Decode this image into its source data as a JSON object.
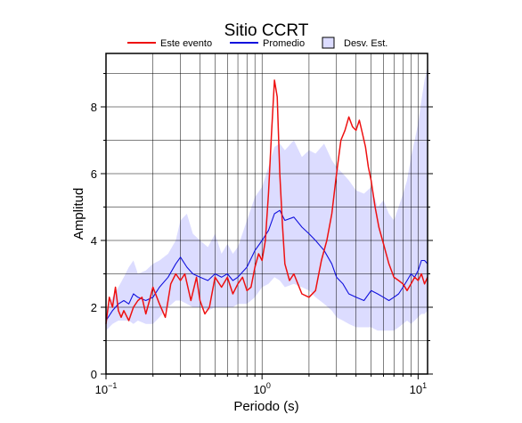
{
  "chart_data": {
    "type": "line",
    "title": "Sitio CCRT",
    "xlabel": "Periodo (s)",
    "ylabel": "Amplitud",
    "x_scale": "log",
    "xlim": [
      0.1,
      11.5
    ],
    "ylim": [
      0,
      9.6
    ],
    "grid": true,
    "legend_placement": "top",
    "x_major_ticks": [
      {
        "value": 0.1,
        "base": "10",
        "exp": "−1"
      },
      {
        "value": 1,
        "base": "10",
        "exp": "0"
      },
      {
        "value": 10,
        "base": "10",
        "exp": "1"
      }
    ],
    "y_ticks": [
      0,
      2,
      4,
      6,
      8
    ],
    "legend": {
      "este_evento": "Este evento",
      "promedio": "Promedio",
      "desv_est": "Desv. Est."
    },
    "colors": {
      "este_evento": "#ee1111",
      "promedio": "#1111dd",
      "band": "#dcdcff"
    },
    "series": [
      {
        "name": "Este evento",
        "x": [
          0.1,
          0.105,
          0.11,
          0.115,
          0.12,
          0.125,
          0.13,
          0.14,
          0.15,
          0.16,
          0.17,
          0.18,
          0.19,
          0.2,
          0.22,
          0.24,
          0.26,
          0.28,
          0.3,
          0.32,
          0.35,
          0.38,
          0.4,
          0.43,
          0.46,
          0.5,
          0.55,
          0.6,
          0.65,
          0.7,
          0.75,
          0.8,
          0.85,
          0.9,
          0.95,
          1.0,
          1.05,
          1.1,
          1.15,
          1.2,
          1.25,
          1.3,
          1.35,
          1.4,
          1.5,
          1.6,
          1.8,
          2.0,
          2.2,
          2.4,
          2.6,
          2.8,
          3.0,
          3.2,
          3.4,
          3.6,
          3.8,
          4.0,
          4.2,
          4.4,
          4.6,
          4.8,
          5.0,
          5.3,
          5.6,
          6.0,
          6.5,
          7.0,
          7.5,
          8.0,
          8.5,
          9.0,
          9.5,
          10.0,
          10.5,
          11.0,
          11.5
        ],
        "values": [
          1.5,
          2.3,
          2.0,
          2.6,
          1.9,
          1.7,
          1.9,
          1.6,
          2.0,
          2.2,
          2.3,
          1.8,
          2.2,
          2.6,
          2.1,
          1.7,
          2.7,
          3.0,
          2.8,
          3.0,
          2.2,
          2.9,
          2.2,
          1.8,
          2.0,
          2.9,
          2.6,
          2.9,
          2.4,
          2.7,
          2.9,
          2.5,
          2.6,
          3.2,
          3.6,
          3.4,
          4.0,
          5.4,
          7.2,
          8.8,
          8.3,
          6.0,
          4.5,
          3.3,
          2.8,
          3.0,
          2.4,
          2.3,
          2.5,
          3.4,
          4.0,
          4.8,
          6.0,
          7.0,
          7.3,
          7.7,
          7.4,
          7.3,
          7.6,
          7.2,
          6.8,
          6.2,
          5.8,
          5.0,
          4.4,
          3.9,
          3.3,
          2.9,
          2.8,
          2.7,
          2.5,
          2.7,
          2.9,
          2.8,
          3.0,
          2.7,
          2.9
        ]
      },
      {
        "name": "Promedio",
        "x": [
          0.1,
          0.11,
          0.12,
          0.13,
          0.14,
          0.15,
          0.16,
          0.18,
          0.2,
          0.22,
          0.25,
          0.28,
          0.3,
          0.33,
          0.36,
          0.4,
          0.45,
          0.5,
          0.55,
          0.6,
          0.65,
          0.7,
          0.8,
          0.9,
          1.0,
          1.1,
          1.2,
          1.3,
          1.4,
          1.6,
          1.8,
          2.0,
          2.2,
          2.5,
          2.8,
          3.0,
          3.3,
          3.6,
          4.0,
          4.5,
          5.0,
          5.5,
          6.0,
          6.5,
          7.0,
          7.5,
          8.0,
          8.5,
          9.0,
          9.5,
          10.0,
          10.5,
          11.0,
          11.5
        ],
        "values": [
          1.6,
          1.9,
          2.1,
          2.2,
          2.1,
          2.4,
          2.3,
          2.2,
          2.3,
          2.6,
          2.9,
          3.3,
          3.5,
          3.2,
          3.0,
          2.9,
          2.8,
          3.0,
          2.9,
          3.0,
          2.8,
          2.9,
          3.2,
          3.7,
          4.0,
          4.3,
          4.8,
          4.9,
          4.6,
          4.7,
          4.4,
          4.2,
          4.0,
          3.7,
          3.3,
          2.9,
          2.7,
          2.4,
          2.3,
          2.2,
          2.5,
          2.4,
          2.3,
          2.2,
          2.3,
          2.4,
          2.6,
          2.8,
          3.0,
          2.9,
          3.1,
          3.4,
          3.4,
          3.3
        ]
      }
    ],
    "band": {
      "name": "Desv. Est.",
      "x": [
        0.1,
        0.11,
        0.12,
        0.13,
        0.14,
        0.15,
        0.16,
        0.18,
        0.2,
        0.22,
        0.25,
        0.28,
        0.3,
        0.33,
        0.36,
        0.4,
        0.45,
        0.5,
        0.55,
        0.6,
        0.65,
        0.7,
        0.8,
        0.9,
        1.0,
        1.1,
        1.2,
        1.3,
        1.4,
        1.6,
        1.8,
        2.0,
        2.2,
        2.5,
        2.8,
        3.0,
        3.3,
        3.6,
        4.0,
        4.5,
        5.0,
        5.5,
        6.0,
        6.5,
        7.0,
        7.5,
        8.0,
        8.5,
        9.0,
        9.5,
        10.0,
        10.5,
        11.0,
        11.5
      ],
      "upper": [
        1.9,
        2.3,
        2.6,
        2.9,
        3.2,
        3.4,
        3.0,
        3.1,
        3.3,
        3.4,
        3.6,
        4.0,
        4.6,
        4.8,
        4.2,
        4.0,
        3.8,
        4.2,
        3.6,
        3.9,
        3.6,
        3.8,
        4.6,
        5.3,
        5.6,
        6.2,
        6.8,
        6.9,
        6.7,
        7.0,
        6.5,
        6.7,
        6.6,
        6.9,
        6.4,
        6.2,
        6.0,
        5.8,
        5.5,
        5.4,
        5.6,
        5.0,
        5.2,
        4.8,
        4.6,
        5.0,
        5.4,
        5.8,
        6.5,
        7.0,
        7.5,
        8.2,
        8.8,
        9.2
      ],
      "lower": [
        1.3,
        1.5,
        1.6,
        1.6,
        1.6,
        1.5,
        1.6,
        1.5,
        1.5,
        1.7,
        2.0,
        2.2,
        2.2,
        2.1,
        2.0,
        2.0,
        1.9,
        2.0,
        2.0,
        2.0,
        2.0,
        2.1,
        2.1,
        2.3,
        2.6,
        2.7,
        2.9,
        2.8,
        2.6,
        2.7,
        2.6,
        2.5,
        2.3,
        2.1,
        1.9,
        1.7,
        1.6,
        1.5,
        1.4,
        1.4,
        1.4,
        1.3,
        1.3,
        1.3,
        1.3,
        1.4,
        1.5,
        1.6,
        1.5,
        1.6,
        1.7,
        1.8,
        1.8,
        1.9
      ]
    }
  }
}
